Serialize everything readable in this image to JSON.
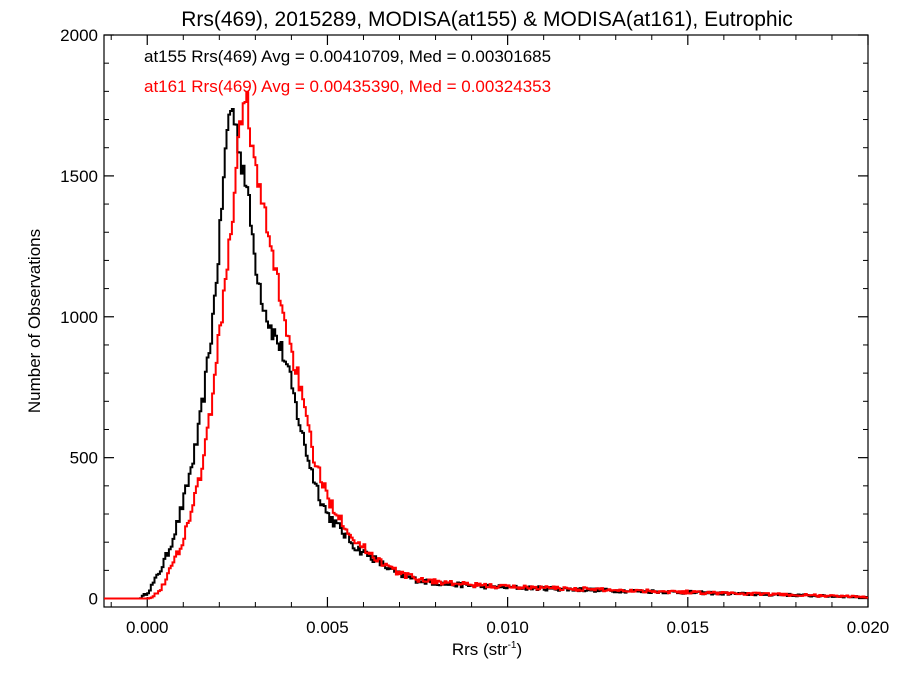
{
  "chart_data": {
    "type": "line",
    "title": "Rrs(469), 2015289, MODISA(at155) & MODISA(at161), Eutrophic",
    "xlabel": "Rrs (str",
    "xlabel_sup": "-1",
    "xlabel_close": ")",
    "ylabel": "Number of Observations",
    "xlim": [
      -0.0012,
      0.02
    ],
    "ylim": [
      -30,
      2000
    ],
    "xticks": [
      {
        "value": 0.0,
        "label": "0.000"
      },
      {
        "value": 0.005,
        "label": "0.005"
      },
      {
        "value": 0.01,
        "label": "0.010"
      },
      {
        "value": 0.015,
        "label": "0.015"
      },
      {
        "value": 0.02,
        "label": "0.020"
      }
    ],
    "yticks": [
      {
        "value": 0,
        "label": "0"
      },
      {
        "value": 500,
        "label": "500"
      },
      {
        "value": 1000,
        "label": "1000"
      },
      {
        "value": 1500,
        "label": "1500"
      },
      {
        "value": 2000,
        "label": "2000"
      }
    ],
    "grid": false,
    "step": "histogram",
    "series": [
      {
        "name": "at155",
        "color": "#000000",
        "annotation": "at155 Rrs(469) Avg = 0.00410709, Med = 0.00301685",
        "points": [
          [
            -0.0012,
            0
          ],
          [
            -0.0002,
            0
          ],
          [
            0.0,
            20
          ],
          [
            0.0002,
            60
          ],
          [
            0.0004,
            110
          ],
          [
            0.0006,
            170
          ],
          [
            0.0008,
            250
          ],
          [
            0.001,
            340
          ],
          [
            0.0012,
            450
          ],
          [
            0.0014,
            570
          ],
          [
            0.0016,
            750
          ],
          [
            0.0018,
            960
          ],
          [
            0.002,
            1250
          ],
          [
            0.0021,
            1450
          ],
          [
            0.0022,
            1620
          ],
          [
            0.0023,
            1750
          ],
          [
            0.0024,
            1720
          ],
          [
            0.0025,
            1640
          ],
          [
            0.0026,
            1560
          ],
          [
            0.0027,
            1520
          ],
          [
            0.0028,
            1420
          ],
          [
            0.003,
            1200
          ],
          [
            0.0032,
            1060
          ],
          [
            0.0034,
            970
          ],
          [
            0.0036,
            920
          ],
          [
            0.0038,
            860
          ],
          [
            0.004,
            760
          ],
          [
            0.0042,
            640
          ],
          [
            0.0044,
            530
          ],
          [
            0.0046,
            440
          ],
          [
            0.0048,
            360
          ],
          [
            0.005,
            300
          ],
          [
            0.0054,
            240
          ],
          [
            0.0058,
            180
          ],
          [
            0.0062,
            150
          ],
          [
            0.0066,
            115
          ],
          [
            0.007,
            85
          ],
          [
            0.0075,
            65
          ],
          [
            0.008,
            55
          ],
          [
            0.009,
            45
          ],
          [
            0.01,
            40
          ],
          [
            0.011,
            36
          ],
          [
            0.012,
            32
          ],
          [
            0.013,
            28
          ],
          [
            0.014,
            25
          ],
          [
            0.015,
            22
          ],
          [
            0.016,
            18
          ],
          [
            0.017,
            15
          ],
          [
            0.018,
            12
          ],
          [
            0.019,
            8
          ],
          [
            0.02,
            5
          ]
        ]
      },
      {
        "name": "at161",
        "color": "#ff0000",
        "annotation": "at161 Rrs(469) Avg = 0.00435390, Med = 0.00324353",
        "points": [
          [
            -0.0012,
            0
          ],
          [
            0.0,
            0
          ],
          [
            0.0002,
            10
          ],
          [
            0.0004,
            40
          ],
          [
            0.0006,
            90
          ],
          [
            0.0008,
            150
          ],
          [
            0.001,
            210
          ],
          [
            0.0012,
            300
          ],
          [
            0.0014,
            400
          ],
          [
            0.0016,
            520
          ],
          [
            0.0018,
            700
          ],
          [
            0.002,
            930
          ],
          [
            0.0022,
            1160
          ],
          [
            0.0024,
            1400
          ],
          [
            0.0025,
            1560
          ],
          [
            0.0026,
            1700
          ],
          [
            0.0027,
            1800
          ],
          [
            0.0028,
            1740
          ],
          [
            0.0029,
            1620
          ],
          [
            0.003,
            1520
          ],
          [
            0.0032,
            1400
          ],
          [
            0.0034,
            1260
          ],
          [
            0.0036,
            1140
          ],
          [
            0.0038,
            1000
          ],
          [
            0.004,
            880
          ],
          [
            0.0042,
            780
          ],
          [
            0.0044,
            640
          ],
          [
            0.0046,
            520
          ],
          [
            0.0048,
            430
          ],
          [
            0.005,
            360
          ],
          [
            0.0054,
            280
          ],
          [
            0.0058,
            200
          ],
          [
            0.0062,
            160
          ],
          [
            0.0066,
            120
          ],
          [
            0.007,
            90
          ],
          [
            0.0075,
            70
          ],
          [
            0.008,
            60
          ],
          [
            0.009,
            48
          ],
          [
            0.01,
            42
          ],
          [
            0.011,
            38
          ],
          [
            0.012,
            34
          ],
          [
            0.013,
            30
          ],
          [
            0.014,
            27
          ],
          [
            0.015,
            23
          ],
          [
            0.016,
            19
          ],
          [
            0.017,
            16
          ],
          [
            0.018,
            13
          ],
          [
            0.019,
            9
          ],
          [
            0.02,
            6
          ]
        ]
      }
    ]
  }
}
